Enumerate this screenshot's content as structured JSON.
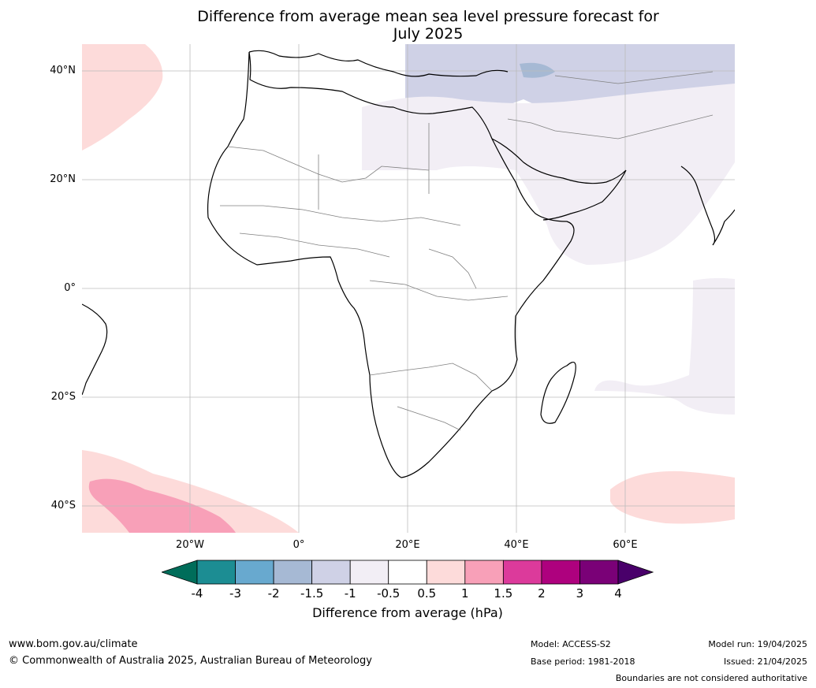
{
  "title_line1": "Difference from average mean sea level pressure forecast for",
  "title_line2": "July 2025",
  "lat_labels": [
    "40°N",
    "20°N",
    "0°",
    "20°S",
    "40°S"
  ],
  "lon_labels": [
    "20°W",
    "0°",
    "20°E",
    "40°E",
    "60°E"
  ],
  "colorbar": {
    "ticks": [
      "-4",
      "-3",
      "-2",
      "-1.5",
      "-1",
      "-0.5",
      "0.5",
      "1",
      "1.5",
      "2",
      "3",
      "4"
    ],
    "colors": [
      "#006d5a",
      "#1c8d93",
      "#68a9cf",
      "#a6b9d4",
      "#cfd1e6",
      "#f2eef5",
      "#ffffff",
      "#fddbda",
      "#f8a0b8",
      "#dc3a9b",
      "#ae017e",
      "#7a0177",
      "#49006a"
    ],
    "label": "Difference from average (hPa)"
  },
  "footer": {
    "website": "www.bom.gov.au/climate",
    "copyright": "© Commonwealth of Australia 2025, Australian Bureau of Meteorology",
    "model": "Model: ACCESS-S2",
    "base_period": "Base period: 1981-2018",
    "model_run": "Model run: 19/04/2025",
    "issued": "Issued: 21/04/2025",
    "disclaimer": "Boundaries are not considered authoritative"
  }
}
